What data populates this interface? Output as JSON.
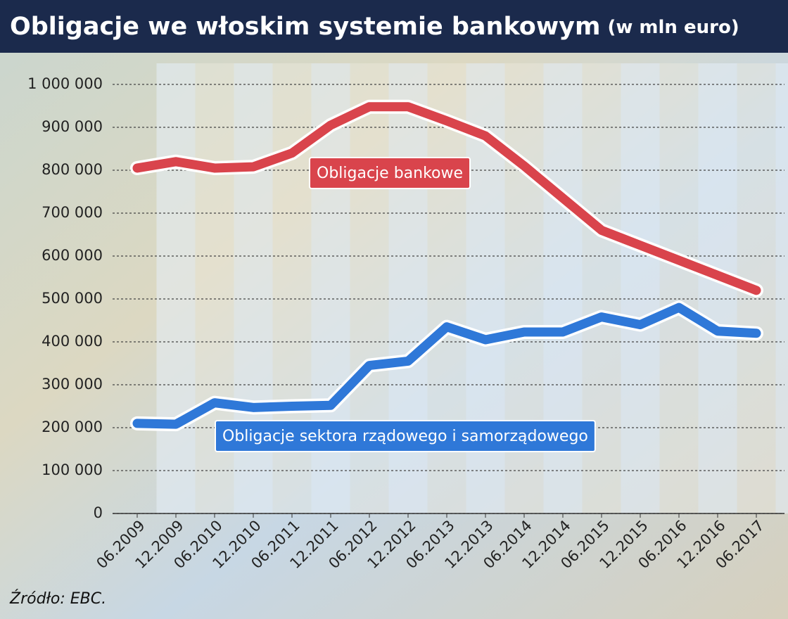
{
  "chart_data": {
    "type": "line",
    "title": "Obligacje we włoskim systemie bankowym",
    "subtitle": "(w mln euro)",
    "source": "Źródło: EBC.",
    "categories": [
      "06.2009",
      "12.2009",
      "06.2010",
      "12.2010",
      "06.2011",
      "12.2011",
      "06.2012",
      "12.2012",
      "06.2013",
      "12.2013",
      "06.2014",
      "12.2014",
      "06.2015",
      "12.2015",
      "06.2016",
      "12.2016",
      "06.2017"
    ],
    "series": [
      {
        "name": "Obligacje bankowe",
        "color": "#d9444c",
        "values": [
          805000,
          820000,
          805000,
          808000,
          840000,
          905000,
          948000,
          948000,
          915000,
          880000,
          810000,
          735000,
          660000,
          625000,
          590000,
          555000,
          520000
        ]
      },
      {
        "name": "Obligacje sektora rządowego i samorządowego",
        "color": "#2f78d8",
        "values": [
          210000,
          208000,
          258000,
          247000,
          250000,
          252000,
          345000,
          355000,
          435000,
          405000,
          423000,
          423000,
          458000,
          440000,
          480000,
          425000,
          420000
        ]
      }
    ],
    "ylim": [
      0,
      1000000
    ],
    "yticks": [
      0,
      {
        "value": 100000,
        "label": "100 000"
      },
      {
        "value": 200000,
        "label": "200 000"
      },
      {
        "value": 300000,
        "label": "300 000"
      },
      {
        "value": 400000,
        "label": "400 000"
      },
      {
        "value": 500000,
        "label": "500 000"
      },
      {
        "value": 600000,
        "label": "600 000"
      },
      {
        "value": 700000,
        "label": "700 000"
      },
      {
        "value": 800000,
        "label": "800 000"
      },
      {
        "value": 900000,
        "label": "900 000"
      },
      {
        "value": 1000000,
        "label": "1 000 000"
      }
    ],
    "grid": true
  }
}
